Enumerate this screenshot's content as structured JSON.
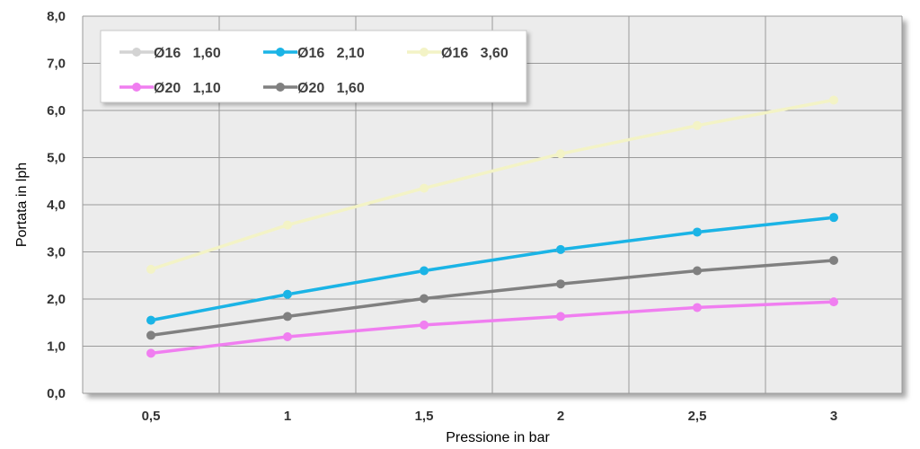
{
  "chart_data": {
    "type": "line",
    "xlabel": "Pressione in bar",
    "ylabel": "Portata in lph",
    "x": [
      0.5,
      1,
      1.5,
      2,
      2.5,
      3
    ],
    "x_tick_labels": [
      "0,5",
      "1",
      "1,5",
      "2",
      "2,5",
      "3"
    ],
    "ylim": [
      0,
      8
    ],
    "y_ticks": [
      0,
      1,
      2,
      3,
      4,
      5,
      6,
      7,
      8
    ],
    "y_tick_labels": [
      "0,0",
      "1,0",
      "2,0",
      "3,0",
      "4,0",
      "5,0",
      "6,0",
      "7,0",
      "8,0"
    ],
    "grid": true,
    "legend_position": "top-left",
    "plot_background": "#ececec",
    "series": [
      {
        "name": "Ø16   1,60",
        "color": "#d3d3d3",
        "values": [
          1.55,
          2.1,
          2.6,
          3.05,
          3.42,
          3.73
        ]
      },
      {
        "name": "Ø16   2,10",
        "color": "#1ab4e6",
        "values": [
          1.55,
          2.1,
          2.6,
          3.05,
          3.42,
          3.73
        ]
      },
      {
        "name": "Ø16   3,60",
        "color": "#f3f3c6",
        "values": [
          2.63,
          3.57,
          4.35,
          5.08,
          5.68,
          6.22
        ]
      },
      {
        "name": "Ø20   1,10",
        "color": "#f07ef0",
        "values": [
          0.85,
          1.2,
          1.45,
          1.63,
          1.82,
          1.94
        ]
      },
      {
        "name": "Ø20   1,60",
        "color": "#808080",
        "values": [
          1.23,
          1.63,
          2.01,
          2.32,
          2.6,
          2.82
        ]
      }
    ]
  }
}
